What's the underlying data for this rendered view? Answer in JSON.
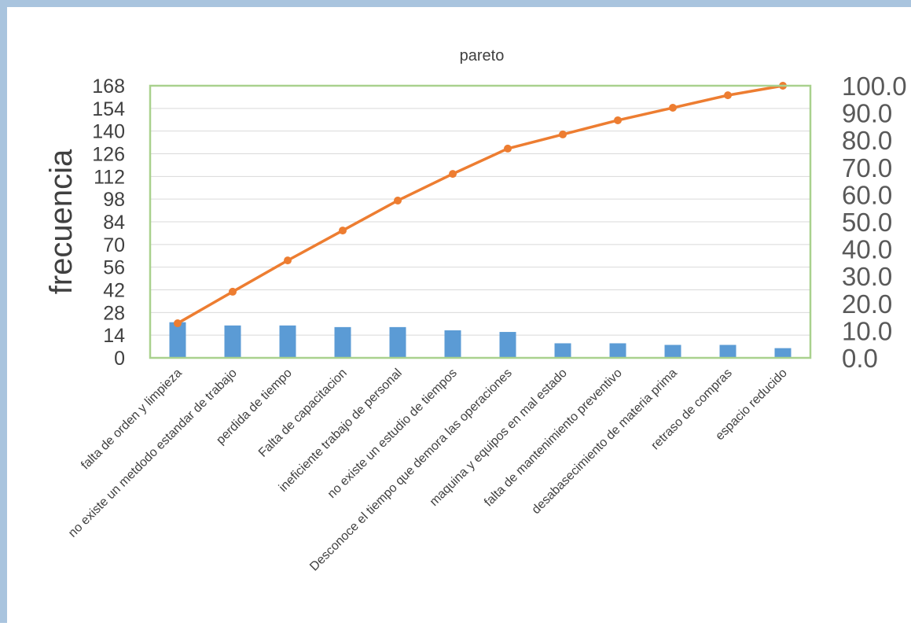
{
  "chart_data": {
    "type": "bar",
    "title": "pareto",
    "xlabel": "",
    "ylabel": "frecuencia",
    "y2label": "",
    "ylim": [
      0,
      168
    ],
    "y2lim": [
      0,
      100
    ],
    "yticks": [
      "0",
      "14",
      "28",
      "42",
      "56",
      "70",
      "84",
      "98",
      "112",
      "126",
      "140",
      "154",
      "168"
    ],
    "y2ticks": [
      "0.0",
      "10.0",
      "20.0",
      "30.0",
      "40.0",
      "50.0",
      "60.0",
      "70.0",
      "80.0",
      "90.0",
      "100.0"
    ],
    "grid": true,
    "legend": "none",
    "categories": [
      "falta de orden y limpieza",
      "no existe un metdodo estandar de trabajo",
      "perdida de tiempo",
      "Falta de capacitacion",
      "ineficiente trabajo de personal",
      "no existe un estudio de tiempos",
      "Desconoce el tiempo que demora las operaciones",
      "maquina y equipos en mal estado",
      "falta de mantenimiento preventivo",
      "desabasecimiento de materia prima",
      "retraso de compras",
      "espacio reducido"
    ],
    "series": [
      {
        "type": "bar",
        "axis": "left",
        "color": "#5b9bd5",
        "values": [
          22,
          20,
          20,
          19,
          19,
          17,
          16,
          9,
          9,
          8,
          8,
          6
        ]
      },
      {
        "type": "line",
        "axis": "right",
        "color": "#ed7d31",
        "values": [
          12.7,
          24.3,
          35.8,
          46.8,
          57.8,
          67.6,
          76.9,
          82.1,
          87.3,
          91.9,
          96.5,
          100.0
        ]
      }
    ],
    "plot_border_color": "#a9d18e"
  }
}
